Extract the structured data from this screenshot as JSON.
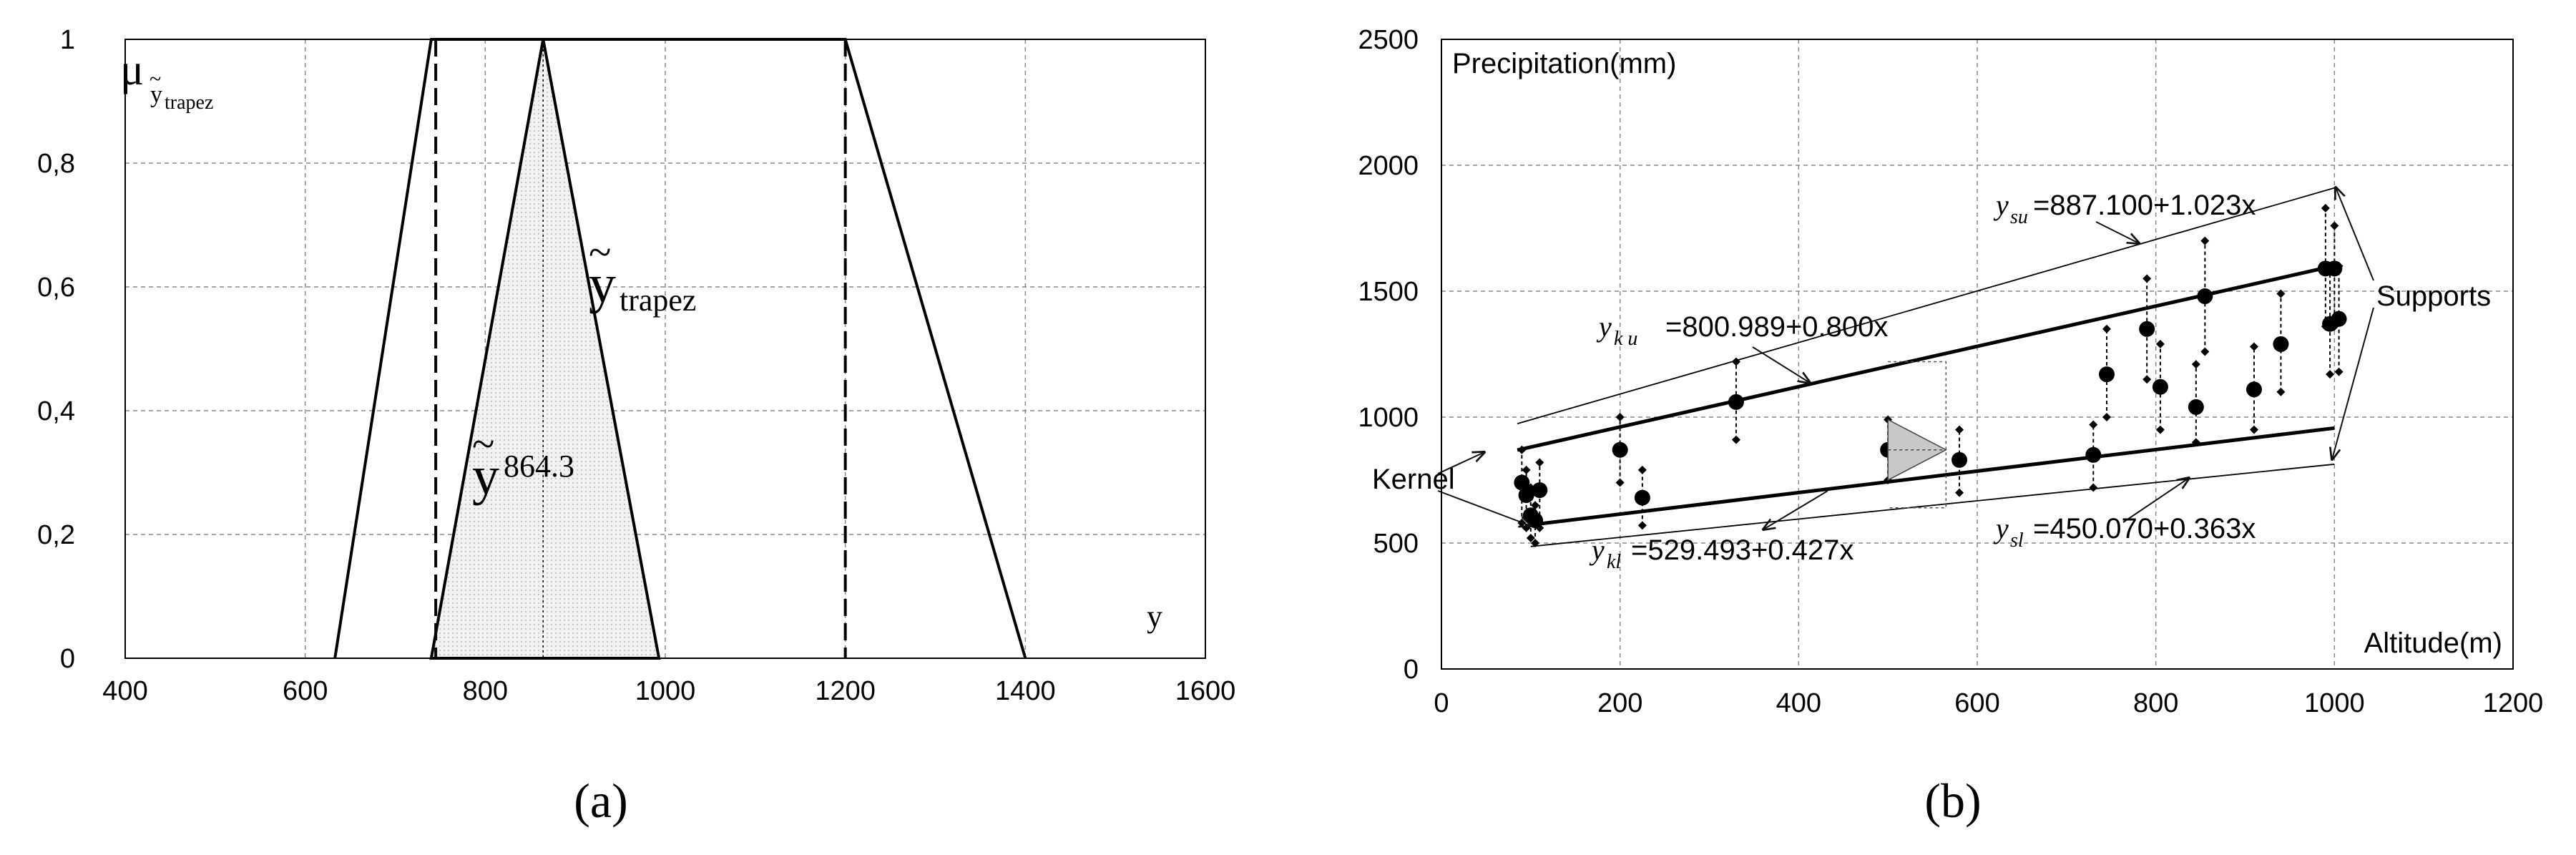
{
  "chart_data": [
    {
      "type": "line",
      "panel_label": "(a)",
      "xlabel": "y",
      "ylabel": "",
      "xlim": [
        400,
        1600
      ],
      "ylim": [
        0,
        1
      ],
      "x_ticks": [
        "400",
        "600",
        "800",
        "1000",
        "1200",
        "1400",
        "1600"
      ],
      "y_ticks": [
        "0",
        "0,2",
        "0,4",
        "0,6",
        "0,8",
        "1"
      ],
      "grid": true,
      "mu_symbol": "μ",
      "mu_subscript": "y",
      "mu_subscript_small": "trapez",
      "trapez_outer": [
        [
          633,
          0
        ],
        [
          740,
          1
        ],
        [
          1200,
          1
        ],
        [
          1400,
          0
        ]
      ],
      "kernel_lines_x": [
        745,
        1200
      ],
      "triangle": [
        [
          740,
          0
        ],
        [
          864.3,
          1
        ],
        [
          993,
          0
        ]
      ],
      "triangle_center_x": 864.3,
      "label_trapez_main": "y",
      "label_trapez_sub": "trapez",
      "label_tri_main": "y",
      "label_tri_sub": "864.3",
      "tilde": "~"
    },
    {
      "type": "scatter",
      "panel_label": "(b)",
      "title": "",
      "xlabel": "Altitude(m)",
      "ylabel": "Precipitation(mm)",
      "xlim": [
        0,
        1200
      ],
      "ylim": [
        0,
        2500
      ],
      "x_ticks": [
        "0",
        "200",
        "400",
        "600",
        "800",
        "1000",
        "1200"
      ],
      "y_ticks": [
        "0",
        "500",
        "1000",
        "1500",
        "2000",
        "2500"
      ],
      "grid": true,
      "lines": {
        "upper_kernel": {
          "intercept": 800.989,
          "slope": 0.8,
          "x_range": [
            85,
            1000
          ]
        },
        "lower_kernel": {
          "intercept": 529.493,
          "slope": 0.427,
          "x_range": [
            100,
            1000
          ]
        },
        "upper_support": {
          "intercept": 887.1,
          "slope": 1.023,
          "x_range": [
            85,
            1000
          ]
        },
        "lower_support": {
          "intercept": 450.07,
          "slope": 0.363,
          "x_range": [
            100,
            1000
          ]
        }
      },
      "points": [
        {
          "x": 90,
          "mid": 740,
          "lo": 580,
          "hi": 870
        },
        {
          "x": 95,
          "mid": 690,
          "lo": 560,
          "hi": 790
        },
        {
          "x": 100,
          "mid": 610,
          "lo": 520,
          "hi": 720
        },
        {
          "x": 105,
          "mid": 590,
          "lo": 500,
          "hi": 650
        },
        {
          "x": 110,
          "mid": 710,
          "lo": 560,
          "hi": 820
        },
        {
          "x": 200,
          "mid": 870,
          "lo": 740,
          "hi": 1000
        },
        {
          "x": 225,
          "mid": 680,
          "lo": 570,
          "hi": 790
        },
        {
          "x": 330,
          "mid": 1060,
          "lo": 910,
          "hi": 1220
        },
        {
          "x": 500,
          "mid": 870,
          "lo": 750,
          "hi": 990
        },
        {
          "x": 580,
          "mid": 830,
          "lo": 700,
          "hi": 950
        },
        {
          "x": 730,
          "mid": 850,
          "lo": 720,
          "hi": 970
        },
        {
          "x": 745,
          "mid": 1170,
          "lo": 1000,
          "hi": 1350
        },
        {
          "x": 790,
          "mid": 1350,
          "lo": 1150,
          "hi": 1550
        },
        {
          "x": 805,
          "mid": 1120,
          "lo": 950,
          "hi": 1290
        },
        {
          "x": 845,
          "mid": 1040,
          "lo": 900,
          "hi": 1210
        },
        {
          "x": 855,
          "mid": 1480,
          "lo": 1260,
          "hi": 1700
        },
        {
          "x": 910,
          "mid": 1110,
          "lo": 950,
          "hi": 1280
        },
        {
          "x": 940,
          "mid": 1290,
          "lo": 1100,
          "hi": 1490
        },
        {
          "x": 990,
          "mid": 1590,
          "lo": 1360,
          "hi": 1830
        },
        {
          "x": 1000,
          "mid": 1590,
          "lo": 1360,
          "hi": 1760
        },
        {
          "x": 995,
          "mid": 1370,
          "lo": 1170,
          "hi": 1580
        },
        {
          "x": 1005,
          "mid": 1390,
          "lo": 1180,
          "hi": 1600
        }
      ],
      "fuzzy_triangle": {
        "base_x": 500,
        "y_low": 750,
        "y_mid": 870,
        "y_high": 990,
        "tip_x": 565
      },
      "fuzzy_bracket": {
        "x1": 500,
        "x2": 565,
        "y_top": 1220,
        "y_bottom": 640
      },
      "annotations": {
        "ysu": {
          "main": "y",
          "sub": "su",
          "rest": "=887.100+1.023x"
        },
        "yku": {
          "main": "y",
          "sub": "k u",
          "rest": "=800.989+0.800x"
        },
        "ysl": {
          "main": "y",
          "sub": "sl",
          "rest": "=450.070+0.363x"
        },
        "ykl": {
          "main": "y",
          "sub": "kl",
          "rest": "=529.493+0.427x"
        },
        "kernel": "Kernel",
        "supports": "Supports"
      }
    }
  ]
}
